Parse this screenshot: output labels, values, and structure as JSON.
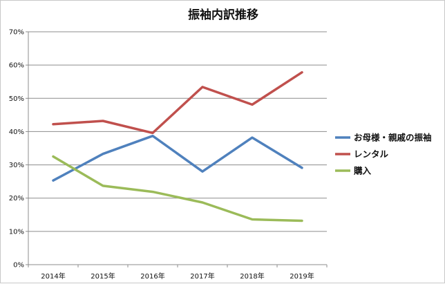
{
  "chart_data": {
    "type": "line",
    "title": "振袖内訳推移",
    "xlabel": "",
    "ylabel": "",
    "categories": [
      "2014年",
      "2015年",
      "2016年",
      "2017年",
      "2018年",
      "2019年"
    ],
    "ylim": [
      0,
      70
    ],
    "y_ticks": [
      0,
      10,
      20,
      30,
      40,
      50,
      60,
      70
    ],
    "y_tick_labels": [
      "0%",
      "10%",
      "20%",
      "30%",
      "40%",
      "50%",
      "60%",
      "70%"
    ],
    "grid": true,
    "legend_position": "right",
    "series": [
      {
        "name": "お母様・親戚の振袖",
        "color": "#4f81bd",
        "values": [
          25.3,
          33.3,
          38.7,
          28.0,
          38.2,
          29.1
        ]
      },
      {
        "name": "レンタル",
        "color": "#c0504d",
        "values": [
          42.2,
          43.2,
          39.6,
          53.4,
          48.1,
          57.8
        ]
      },
      {
        "name": "購入",
        "color": "#9bbb59",
        "values": [
          32.5,
          23.7,
          21.9,
          18.7,
          13.6,
          13.2
        ]
      }
    ]
  }
}
